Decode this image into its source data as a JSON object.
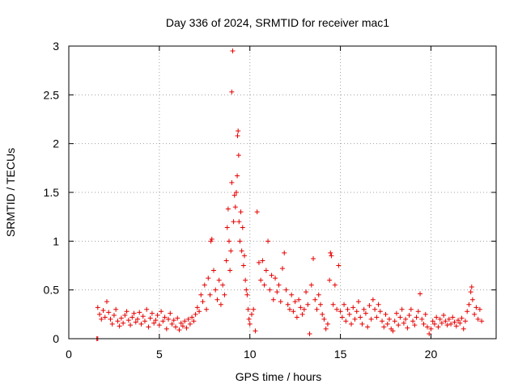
{
  "chart_data": {
    "type": "scatter",
    "title": "Day 336 of 2024, SRMTID for receiver mac1",
    "xlabel": "GPS time / hours",
    "ylabel": "SRMTID / TECUs",
    "xlim": [
      0,
      23.6
    ],
    "ylim": [
      0,
      3
    ],
    "xticks": [
      0,
      5,
      10,
      15,
      20
    ],
    "xtick_labels": [
      "0",
      "5",
      "10",
      "15",
      "20"
    ],
    "yticks": [
      0,
      0.5,
      1,
      1.5,
      2,
      2.5,
      3
    ],
    "ytick_labels": [
      "0",
      "0.5",
      "1",
      "1.5",
      "2",
      "2.5",
      "3"
    ],
    "grid": true,
    "marker": "plus",
    "series": [
      {
        "name": "mac1",
        "color": "#e60000",
        "points": [
          [
            1.55,
            0.0
          ],
          [
            1.6,
            0.0
          ],
          [
            1.6,
            0.32
          ],
          [
            1.7,
            0.25
          ],
          [
            1.8,
            0.2
          ],
          [
            1.9,
            0.29
          ],
          [
            2.0,
            0.22
          ],
          [
            2.1,
            0.38
          ],
          [
            2.2,
            0.27
          ],
          [
            2.3,
            0.2
          ],
          [
            2.4,
            0.15
          ],
          [
            2.5,
            0.24
          ],
          [
            2.6,
            0.3
          ],
          [
            2.7,
            0.18
          ],
          [
            2.8,
            0.13
          ],
          [
            2.9,
            0.21
          ],
          [
            3.0,
            0.16
          ],
          [
            3.1,
            0.24
          ],
          [
            3.2,
            0.28
          ],
          [
            3.3,
            0.19
          ],
          [
            3.4,
            0.14
          ],
          [
            3.5,
            0.22
          ],
          [
            3.6,
            0.26
          ],
          [
            3.7,
            0.17
          ],
          [
            3.8,
            0.2
          ],
          [
            3.9,
            0.27
          ],
          [
            4.0,
            0.15
          ],
          [
            4.1,
            0.23
          ],
          [
            4.2,
            0.18
          ],
          [
            4.3,
            0.3
          ],
          [
            4.4,
            0.12
          ],
          [
            4.5,
            0.21
          ],
          [
            4.6,
            0.26
          ],
          [
            4.7,
            0.16
          ],
          [
            4.8,
            0.19
          ],
          [
            4.9,
            0.24
          ],
          [
            5.0,
            0.14
          ],
          [
            5.1,
            0.28
          ],
          [
            5.2,
            0.18
          ],
          [
            5.3,
            0.22
          ],
          [
            5.4,
            0.1
          ],
          [
            5.5,
            0.2
          ],
          [
            5.6,
            0.26
          ],
          [
            5.7,
            0.15
          ],
          [
            5.8,
            0.19
          ],
          [
            5.9,
            0.12
          ],
          [
            6.0,
            0.21
          ],
          [
            6.1,
            0.09
          ],
          [
            6.2,
            0.16
          ],
          [
            6.3,
            0.13
          ],
          [
            6.4,
            0.18
          ],
          [
            6.5,
            0.11
          ],
          [
            6.6,
            0.2
          ],
          [
            6.7,
            0.15
          ],
          [
            6.8,
            0.22
          ],
          [
            6.9,
            0.18
          ],
          [
            7.0,
            0.25
          ],
          [
            7.1,
            0.32
          ],
          [
            7.2,
            0.28
          ],
          [
            7.3,
            0.45
          ],
          [
            7.4,
            0.38
          ],
          [
            7.5,
            0.55
          ],
          [
            7.6,
            0.3
          ],
          [
            7.7,
            0.62
          ],
          [
            7.8,
            0.45
          ],
          [
            7.85,
            1.0
          ],
          [
            7.9,
            1.02
          ],
          [
            8.0,
            0.7
          ],
          [
            8.1,
            0.5
          ],
          [
            8.2,
            0.4
          ],
          [
            8.3,
            0.6
          ],
          [
            8.4,
            0.35
          ],
          [
            8.5,
            0.55
          ],
          [
            8.6,
            0.45
          ],
          [
            8.7,
            0.8
          ],
          [
            8.75,
            1.14
          ],
          [
            8.8,
            1.33
          ],
          [
            8.85,
            1.0
          ],
          [
            8.9,
            0.7
          ],
          [
            8.95,
            0.9
          ],
          [
            9.0,
            1.6
          ],
          [
            9.0,
            2.53
          ],
          [
            9.05,
            2.95
          ],
          [
            9.1,
            1.2
          ],
          [
            9.15,
            1.47
          ],
          [
            9.2,
            1.35
          ],
          [
            9.25,
            1.5
          ],
          [
            9.3,
            1.67
          ],
          [
            9.32,
            2.08
          ],
          [
            9.35,
            2.13
          ],
          [
            9.38,
            1.88
          ],
          [
            9.4,
            1.2
          ],
          [
            9.45,
            1.0
          ],
          [
            9.5,
            1.3
          ],
          [
            9.55,
            0.9
          ],
          [
            9.6,
            1.14
          ],
          [
            9.65,
            0.75
          ],
          [
            9.7,
            0.85
          ],
          [
            9.75,
            0.6
          ],
          [
            9.8,
            0.5
          ],
          [
            9.85,
            0.45
          ],
          [
            9.9,
            0.3
          ],
          [
            9.95,
            0.2
          ],
          [
            10.0,
            0.15
          ],
          [
            10.1,
            0.25
          ],
          [
            10.2,
            0.3
          ],
          [
            10.3,
            0.08
          ],
          [
            10.4,
            1.3
          ],
          [
            10.5,
            0.78
          ],
          [
            10.6,
            0.6
          ],
          [
            10.7,
            0.8
          ],
          [
            10.8,
            0.55
          ],
          [
            10.9,
            0.7
          ],
          [
            11.0,
            1.0
          ],
          [
            11.1,
            0.5
          ],
          [
            11.2,
            0.65
          ],
          [
            11.3,
            0.4
          ],
          [
            11.4,
            0.62
          ],
          [
            11.5,
            0.48
          ],
          [
            11.6,
            0.55
          ],
          [
            11.7,
            0.38
          ],
          [
            11.8,
            0.72
          ],
          [
            11.9,
            0.88
          ],
          [
            12.0,
            0.5
          ],
          [
            12.1,
            0.35
          ],
          [
            12.2,
            0.3
          ],
          [
            12.3,
            0.45
          ],
          [
            12.4,
            0.28
          ],
          [
            12.5,
            0.38
          ],
          [
            12.6,
            0.22
          ],
          [
            12.7,
            0.4
          ],
          [
            12.8,
            0.32
          ],
          [
            12.9,
            0.25
          ],
          [
            13.0,
            0.3
          ],
          [
            13.1,
            0.48
          ],
          [
            13.2,
            0.35
          ],
          [
            13.3,
            0.05
          ],
          [
            13.4,
            0.55
          ],
          [
            13.5,
            0.82
          ],
          [
            13.6,
            0.4
          ],
          [
            13.7,
            0.3
          ],
          [
            13.8,
            0.45
          ],
          [
            13.9,
            0.35
          ],
          [
            14.0,
            0.25
          ],
          [
            14.1,
            0.2
          ],
          [
            14.2,
            0.1
          ],
          [
            14.3,
            0.15
          ],
          [
            14.4,
            0.6
          ],
          [
            14.45,
            0.88
          ],
          [
            14.5,
            0.85
          ],
          [
            14.6,
            0.35
          ],
          [
            14.7,
            0.55
          ],
          [
            14.8,
            0.3
          ],
          [
            14.9,
            0.75
          ],
          [
            15.0,
            0.28
          ],
          [
            15.1,
            0.22
          ],
          [
            15.2,
            0.35
          ],
          [
            15.3,
            0.18
          ],
          [
            15.4,
            0.3
          ],
          [
            15.5,
            0.25
          ],
          [
            15.6,
            0.15
          ],
          [
            15.7,
            0.32
          ],
          [
            15.8,
            0.2
          ],
          [
            15.9,
            0.28
          ],
          [
            16.0,
            0.38
          ],
          [
            16.1,
            0.22
          ],
          [
            16.2,
            0.15
          ],
          [
            16.3,
            0.3
          ],
          [
            16.4,
            0.26
          ],
          [
            16.5,
            0.12
          ],
          [
            16.6,
            0.34
          ],
          [
            16.7,
            0.2
          ],
          [
            16.8,
            0.4
          ],
          [
            16.9,
            0.3
          ],
          [
            17.0,
            0.22
          ],
          [
            17.1,
            0.35
          ],
          [
            17.2,
            0.28
          ],
          [
            17.3,
            0.18
          ],
          [
            17.4,
            0.12
          ],
          [
            17.5,
            0.25
          ],
          [
            17.6,
            0.15
          ],
          [
            17.7,
            0.2
          ],
          [
            17.8,
            0.1
          ],
          [
            17.9,
            0.08
          ],
          [
            18.0,
            0.18
          ],
          [
            18.1,
            0.26
          ],
          [
            18.2,
            0.14
          ],
          [
            18.3,
            0.22
          ],
          [
            18.4,
            0.3
          ],
          [
            18.5,
            0.16
          ],
          [
            18.6,
            0.2
          ],
          [
            18.7,
            0.11
          ],
          [
            18.8,
            0.24
          ],
          [
            18.9,
            0.3
          ],
          [
            19.0,
            0.18
          ],
          [
            19.1,
            0.14
          ],
          [
            19.2,
            0.22
          ],
          [
            19.3,
            0.28
          ],
          [
            19.4,
            0.46
          ],
          [
            19.5,
            0.2
          ],
          [
            19.6,
            0.15
          ],
          [
            19.7,
            0.25
          ],
          [
            19.8,
            0.12
          ],
          [
            19.9,
            0.05
          ],
          [
            20.0,
            0.1
          ],
          [
            20.1,
            0.18
          ],
          [
            20.2,
            0.15
          ],
          [
            20.3,
            0.22
          ],
          [
            20.4,
            0.12
          ],
          [
            20.5,
            0.2
          ],
          [
            20.6,
            0.16
          ],
          [
            20.7,
            0.24
          ],
          [
            20.8,
            0.18
          ],
          [
            20.9,
            0.14
          ],
          [
            21.0,
            0.2
          ],
          [
            21.1,
            0.15
          ],
          [
            21.2,
            0.22
          ],
          [
            21.3,
            0.17
          ],
          [
            21.4,
            0.13
          ],
          [
            21.5,
            0.19
          ],
          [
            21.6,
            0.16
          ],
          [
            21.7,
            0.21
          ],
          [
            21.8,
            0.1
          ],
          [
            21.9,
            0.18
          ],
          [
            22.0,
            0.28
          ],
          [
            22.1,
            0.35
          ],
          [
            22.2,
            0.48
          ],
          [
            22.25,
            0.53
          ],
          [
            22.3,
            0.4
          ],
          [
            22.4,
            0.25
          ],
          [
            22.5,
            0.32
          ],
          [
            22.6,
            0.2
          ],
          [
            22.7,
            0.3
          ],
          [
            22.8,
            0.18
          ]
        ]
      }
    ]
  }
}
